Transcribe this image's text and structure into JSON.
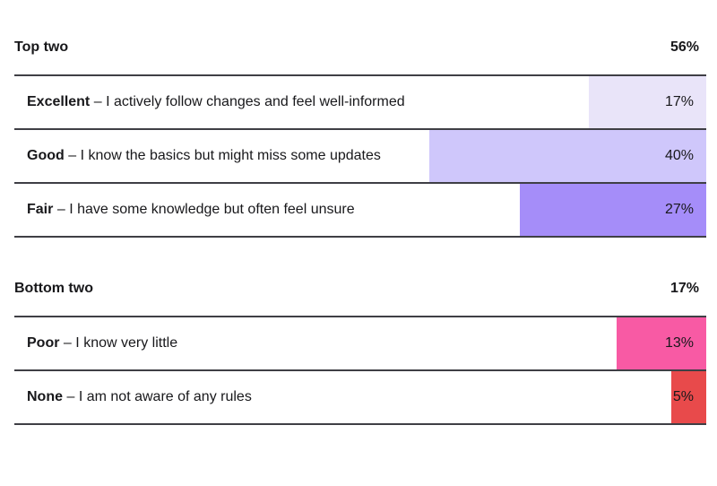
{
  "page": {
    "background": "#ffffff",
    "text_color": "#18181B",
    "divider_color": "#3F3F45"
  },
  "chart_data": {
    "type": "bar",
    "orientation": "horizontal",
    "bar_alignment": "right",
    "unit": "%",
    "axis_max": 100,
    "grid": false,
    "legend": false,
    "sections": [
      {
        "label": "Top two",
        "total_label": "56%",
        "total_value": 56,
        "rows": [
          {
            "category": "Excellent",
            "separator": "–",
            "description": "I actively follow changes and feel well-informed",
            "value": 17,
            "value_label": "17%",
            "bar_color": "#E9E4F9"
          },
          {
            "category": "Good",
            "separator": "–",
            "description": "I know the basics but might miss some updates",
            "value": 40,
            "value_label": "40%",
            "bar_color": "#CFC7FB"
          },
          {
            "category": "Fair",
            "separator": "–",
            "description": "I have some knowledge but often feel unsure",
            "value": 27,
            "value_label": "27%",
            "bar_color": "#A58DF9"
          }
        ]
      },
      {
        "label": "Bottom two",
        "total_label": "17%",
        "total_value": 17,
        "rows": [
          {
            "category": "Poor",
            "separator": "–",
            "description": "I know very little",
            "value": 13,
            "value_label": "13%",
            "bar_color": "#F85AA4"
          },
          {
            "category": "None",
            "separator": "–",
            "description": "I am not aware of any rules",
            "value": 5,
            "value_label": "5%",
            "bar_color": "#E84A4B"
          }
        ]
      }
    ]
  }
}
